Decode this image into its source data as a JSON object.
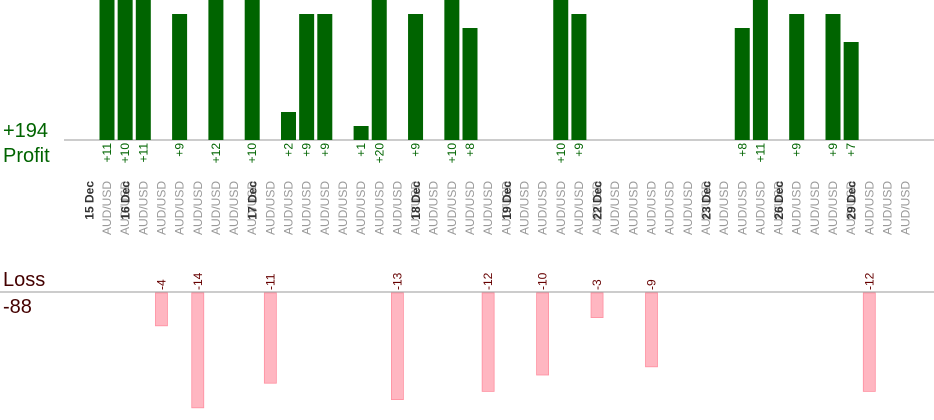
{
  "summary": {
    "profit_total": "+194",
    "profit_label": "Profit",
    "loss_label": "Loss",
    "loss_total": "-88"
  },
  "chart_data": {
    "type": "bar",
    "title": "",
    "xlabel": "",
    "ylabel": "",
    "grid": false,
    "legend": "none",
    "colors": {
      "profit_fill": "#006400",
      "profit_text": "#006400",
      "loss_fill": "#ffb6c1",
      "loss_text": "#660000",
      "date_text": "#333333",
      "pair_text": "#999999"
    },
    "categories": [
      "AUD/USD",
      "AUD/USD",
      "AUD/USD",
      "AUD/USD",
      "AUD/USD",
      "AUD/USD",
      "AUD/USD",
      "AUD/USD",
      "AUD/USD",
      "AUD/USD",
      "AUD/USD",
      "AUD/USD",
      "AUD/USD",
      "AUD/USD",
      "AUD/USD",
      "AUD/USD",
      "AUD/USD",
      "AUD/USD",
      "AUD/USD",
      "AUD/USD",
      "AUD/USD",
      "AUD/USD",
      "AUD/USD",
      "AUD/USD",
      "AUD/USD",
      "AUD/USD",
      "AUD/USD",
      "AUD/USD",
      "AUD/USD",
      "AUD/USD",
      "AUD/USD",
      "AUD/USD",
      "AUD/USD",
      "AUD/USD",
      "AUD/USD",
      "AUD/USD",
      "AUD/USD",
      "AUD/USD",
      "AUD/USD",
      "AUD/USD",
      "AUD/USD",
      "AUD/USD",
      "AUD/USD",
      "AUD/USD",
      "AUD/USD"
    ],
    "date_groups": [
      {
        "label": "15 Dec",
        "start": 0
      },
      {
        "label": "16 Dec",
        "start": 2
      },
      {
        "label": "17 Dec",
        "start": 9
      },
      {
        "label": "18 Dec",
        "start": 18
      },
      {
        "label": "19 Dec",
        "start": 23
      },
      {
        "label": "22 Dec",
        "start": 28
      },
      {
        "label": "23 Dec",
        "start": 34
      },
      {
        "label": "26 Dec",
        "start": 38
      },
      {
        "label": "29 Dec",
        "start": 42
      }
    ],
    "profit_ylim": [
      0,
      10
    ],
    "loss_ylim": [
      0,
      14
    ],
    "series": [
      {
        "name": "Profit",
        "labels": [
          "+11",
          "+10",
          "+11",
          "",
          "+9",
          "",
          "+12",
          "",
          "+10",
          "",
          "+2",
          "+9",
          "+9",
          "",
          "+1",
          "+20",
          "",
          "+9",
          "",
          "+10",
          "+8",
          "",
          "",
          "",
          "",
          "+10",
          "+9",
          "",
          "",
          "",
          "",
          "",
          "",
          "",
          "",
          "+8",
          "+11",
          "",
          "+9",
          "",
          "+9",
          "+7",
          "",
          "",
          ""
        ],
        "values": [
          11,
          10,
          11,
          0,
          9,
          0,
          12,
          0,
          10,
          0,
          2,
          9,
          9,
          0,
          1,
          20,
          0,
          9,
          0,
          10,
          8,
          0,
          0,
          0,
          0,
          10,
          9,
          0,
          0,
          0,
          0,
          0,
          0,
          0,
          0,
          8,
          11,
          0,
          9,
          0,
          9,
          7,
          0,
          0,
          0
        ]
      },
      {
        "name": "Loss",
        "labels": [
          "",
          "",
          "",
          "-4",
          "",
          "-14",
          "",
          "",
          "",
          "-11",
          "",
          "",
          "",
          "",
          "",
          "",
          "-13",
          "",
          "",
          "",
          "",
          "-12",
          "",
          "",
          "-10",
          "",
          "",
          "-3",
          "",
          "",
          "-9",
          "",
          "",
          "",
          "",
          "",
          "",
          "",
          "",
          "",
          "",
          "",
          "-12",
          "",
          ""
        ],
        "values": [
          0,
          0,
          0,
          -4,
          0,
          -14,
          0,
          0,
          0,
          -11,
          0,
          0,
          0,
          0,
          0,
          0,
          -13,
          0,
          0,
          0,
          0,
          -12,
          0,
          0,
          -10,
          0,
          0,
          -3,
          0,
          0,
          -9,
          0,
          0,
          0,
          0,
          0,
          0,
          0,
          0,
          0,
          0,
          0,
          -12,
          0,
          0
        ]
      }
    ]
  }
}
